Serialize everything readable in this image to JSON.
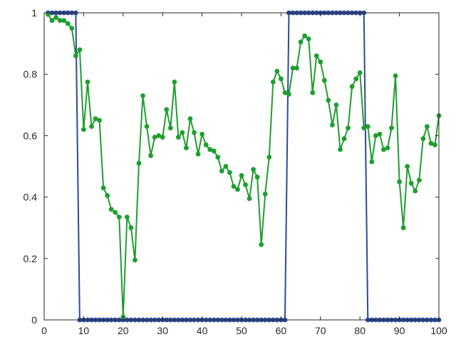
{
  "chart_data": {
    "type": "line",
    "title": "",
    "xlabel": "",
    "ylabel": "",
    "xlim": [
      0,
      100
    ],
    "ylim": [
      0,
      1
    ],
    "xticks": [
      0,
      10,
      20,
      30,
      40,
      50,
      60,
      70,
      80,
      90,
      100
    ],
    "yticks": [
      0,
      0.2,
      0.4,
      0.6,
      0.8,
      1
    ],
    "xtick_labels": [
      "0",
      "10",
      "20",
      "30",
      "40",
      "50",
      "60",
      "70",
      "80",
      "90",
      "100"
    ],
    "ytick_labels": [
      "0",
      "0.2",
      "0.4",
      "0.6",
      "0.8",
      "1"
    ],
    "grid": false,
    "box": true,
    "x": [
      1,
      2,
      3,
      4,
      5,
      6,
      7,
      8,
      9,
      10,
      11,
      12,
      13,
      14,
      15,
      16,
      17,
      18,
      19,
      20,
      21,
      22,
      23,
      24,
      25,
      26,
      27,
      28,
      29,
      30,
      31,
      32,
      33,
      34,
      35,
      36,
      37,
      38,
      39,
      40,
      41,
      42,
      43,
      44,
      45,
      46,
      47,
      48,
      49,
      50,
      51,
      52,
      53,
      54,
      55,
      56,
      57,
      58,
      59,
      60,
      61,
      62,
      63,
      64,
      65,
      66,
      67,
      68,
      69,
      70,
      71,
      72,
      73,
      74,
      75,
      76,
      77,
      78,
      79,
      80,
      81,
      82,
      83,
      84,
      85,
      86,
      87,
      88,
      89,
      90,
      91,
      92,
      93,
      94,
      95,
      96,
      97,
      98,
      99,
      100
    ],
    "series": [
      {
        "color": "#2c4a9a",
        "values": [
          1,
          1,
          1,
          1,
          1,
          1,
          1,
          1,
          0,
          0,
          0,
          0,
          0,
          0,
          0,
          0,
          0,
          0,
          0,
          0,
          0,
          0,
          0,
          0,
          0,
          0,
          0,
          0,
          0,
          0,
          0,
          0,
          0,
          0,
          0,
          0,
          0,
          0,
          0,
          0,
          0,
          0,
          0,
          0,
          0,
          0,
          0,
          0,
          0,
          0,
          0,
          0,
          0,
          0,
          0,
          0,
          0,
          0,
          0,
          0,
          0,
          1,
          1,
          1,
          1,
          1,
          1,
          1,
          1,
          1,
          1,
          1,
          1,
          1,
          1,
          1,
          1,
          1,
          1,
          1,
          1,
          0,
          0,
          0,
          0,
          0,
          0,
          0,
          0,
          0,
          0,
          0,
          0,
          0,
          0,
          0,
          0,
          0,
          0,
          0
        ]
      },
      {
        "color": "#1f9e2f",
        "values": [
          0.995,
          0.975,
          0.985,
          0.975,
          0.975,
          0.965,
          0.95,
          0.86,
          0.88,
          0.62,
          0.775,
          0.63,
          0.655,
          0.65,
          0.43,
          0.405,
          0.36,
          0.35,
          0.335,
          0.01,
          0.335,
          0.3,
          0.195,
          0.51,
          0.73,
          0.63,
          0.535,
          0.595,
          0.6,
          0.595,
          0.685,
          0.625,
          0.775,
          0.595,
          0.61,
          0.56,
          0.655,
          0.61,
          0.54,
          0.605,
          0.57,
          0.555,
          0.55,
          0.53,
          0.485,
          0.5,
          0.48,
          0.435,
          0.425,
          0.47,
          0.44,
          0.395,
          0.49,
          0.465,
          0.245,
          0.41,
          0.53,
          0.775,
          0.81,
          0.785,
          0.74,
          0.735,
          0.82,
          0.82,
          0.905,
          0.925,
          0.915,
          0.74,
          0.86,
          0.84,
          0.78,
          0.715,
          0.635,
          0.7,
          0.555,
          0.59,
          0.625,
          0.76,
          0.785,
          0.805,
          0.625,
          0.63,
          0.515,
          0.6,
          0.605,
          0.555,
          0.56,
          0.625,
          0.795,
          0.45,
          0.3,
          0.5,
          0.445,
          0.42,
          0.455,
          0.59,
          0.63,
          0.575,
          0.57,
          0.665
        ]
      }
    ]
  }
}
